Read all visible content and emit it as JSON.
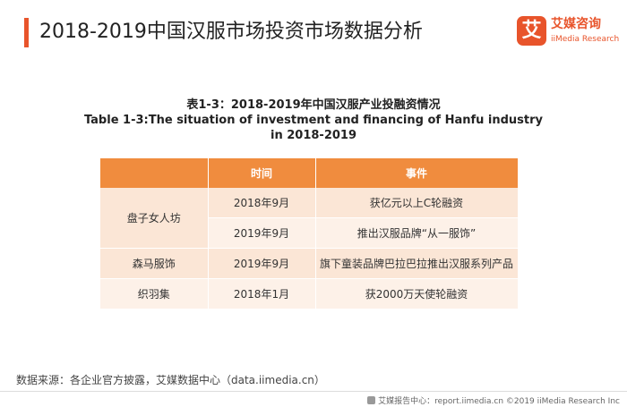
{
  "header": {
    "title": "2018-2019中国汉服市场投资市场数据分析",
    "accent_color": "#e8542b"
  },
  "logo": {
    "mark": "艾",
    "name_cn": "艾媒咨询",
    "name_en": "iiMedia Research"
  },
  "caption": {
    "line1": "表1-3：2018-2019年中国汉服产业投融资情况",
    "line2": "Table 1-3:The situation of investment and financing of Hanfu industry",
    "line3": "in 2018-2019"
  },
  "table": {
    "header_color": "#f08c3e",
    "columns": [
      "",
      "时间",
      "事件"
    ],
    "rows": [
      {
        "company": "盘子女人坊",
        "time": "2018年9月",
        "event": "获亿元以上C轮融资"
      },
      {
        "company": "",
        "time": "2019年9月",
        "event": "推出汉服品牌“从一服饰”"
      },
      {
        "company": "森马服饰",
        "time": "2019年9月",
        "event": "旗下童装品牌巴拉巴拉推出汉服系列产品"
      },
      {
        "company": "织羽集",
        "time": "2018年1月",
        "event": "获2000万天使轮融资"
      }
    ]
  },
  "source": "数据来源：各企业官方披露，艾媒数据中心（data.iimedia.cn）",
  "footer": "艾媒报告中心：report.iimedia.cn  ©2019  iiMedia Research  Inc"
}
